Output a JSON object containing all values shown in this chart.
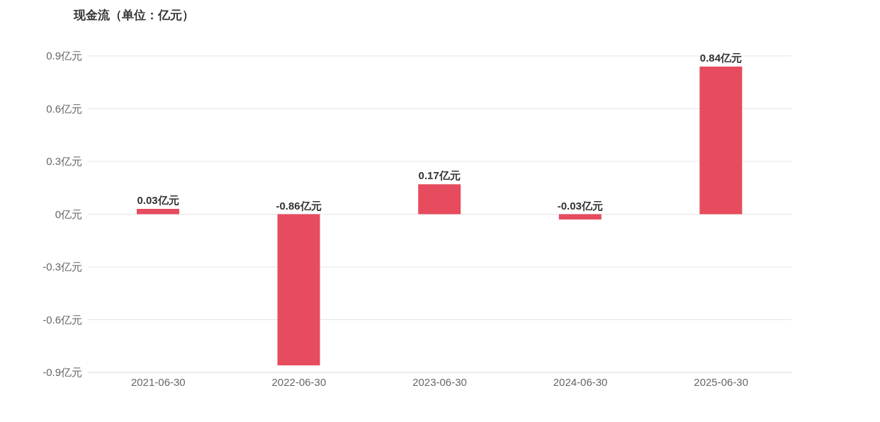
{
  "chart_data": {
    "type": "bar",
    "title": "现金流（单位：亿元）",
    "categories": [
      "2021-06-30",
      "2022-06-30",
      "2023-06-30",
      "2024-06-30",
      "2025-06-30"
    ],
    "values": [
      0.03,
      -0.86,
      0.17,
      -0.03,
      0.84
    ],
    "value_labels": [
      "0.03亿元",
      "-0.86亿元",
      "0.17亿元",
      "-0.03亿元",
      "0.84亿元"
    ],
    "color": "#e64c5e",
    "ylim": [
      -0.9,
      0.9
    ],
    "yticks": [
      {
        "value": -0.9,
        "label": "-0.9亿元"
      },
      {
        "value": -0.6,
        "label": "-0.6亿元"
      },
      {
        "value": -0.3,
        "label": "-0.3亿元"
      },
      {
        "value": 0,
        "label": "0亿元"
      },
      {
        "value": 0.3,
        "label": "0.3亿元"
      },
      {
        "value": 0.6,
        "label": "0.6亿元"
      },
      {
        "value": 0.9,
        "label": "0.9亿元"
      }
    ],
    "grid": "y",
    "legend": false
  }
}
